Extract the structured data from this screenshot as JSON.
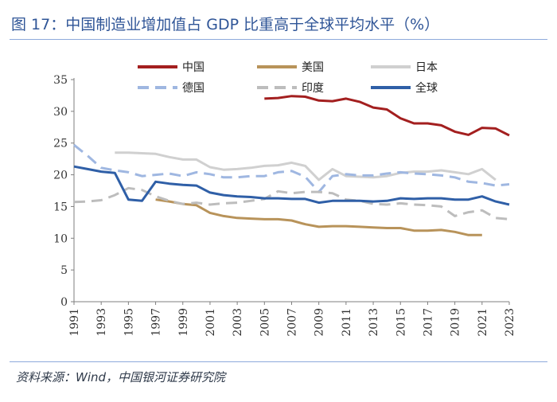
{
  "title": "图 17：中国制造业增加值占 GDP 比重高于全球平均水平（%）",
  "source": "资料来源：Wind，中国银河证券研究院",
  "chart_data": {
    "type": "line",
    "x": [
      1991,
      1992,
      1993,
      1994,
      1995,
      1996,
      1997,
      1998,
      1999,
      2000,
      2001,
      2002,
      2003,
      2004,
      2005,
      2006,
      2007,
      2008,
      2009,
      2010,
      2011,
      2012,
      2013,
      2014,
      2015,
      2016,
      2017,
      2018,
      2019,
      2020,
      2021,
      2022,
      2023
    ],
    "x_tick_labels": [
      "1991",
      "1993",
      "1995",
      "1997",
      "1999",
      "2001",
      "2003",
      "2005",
      "2007",
      "2009",
      "2011",
      "2013",
      "2015",
      "2017",
      "2019",
      "2021",
      "2023"
    ],
    "y_ticks": [
      "0",
      "5",
      "10",
      "15",
      "20",
      "25",
      "30",
      "35"
    ],
    "ylim": [
      0,
      35
    ],
    "grid": false,
    "legend_position": "top",
    "series": [
      {
        "name": "中国",
        "color": "#a31f1f",
        "dash": "solid",
        "values": [
          null,
          null,
          null,
          null,
          null,
          null,
          null,
          null,
          null,
          null,
          null,
          null,
          null,
          null,
          32.0,
          32.1,
          32.4,
          32.3,
          31.7,
          31.6,
          32.0,
          31.5,
          30.6,
          30.3,
          28.9,
          28.1,
          28.1,
          27.8,
          26.8,
          26.3,
          27.4,
          27.3,
          26.2
        ]
      },
      {
        "name": "美国",
        "color": "#b8935a",
        "dash": "solid",
        "values": [
          null,
          null,
          null,
          null,
          null,
          null,
          16.1,
          15.8,
          15.4,
          15.2,
          14.0,
          13.5,
          13.2,
          13.1,
          13.0,
          13.0,
          12.8,
          12.2,
          11.8,
          11.9,
          11.9,
          11.8,
          11.7,
          11.6,
          11.6,
          11.2,
          11.2,
          11.3,
          11.0,
          10.5,
          10.5,
          null,
          null
        ]
      },
      {
        "name": "日本",
        "color": "#d0d0d0",
        "dash": "solid",
        "values": [
          null,
          null,
          null,
          23.5,
          23.5,
          23.4,
          23.3,
          22.8,
          22.4,
          22.4,
          21.2,
          20.8,
          20.9,
          21.1,
          21.4,
          21.5,
          21.9,
          21.4,
          19.2,
          20.9,
          19.8,
          19.7,
          19.6,
          19.8,
          20.3,
          20.5,
          20.5,
          20.7,
          20.4,
          20.1,
          20.9,
          19.2,
          null
        ]
      },
      {
        "name": "德国",
        "color": "#9fb7e1",
        "dash": "dashed",
        "values": [
          24.7,
          23.0,
          21.1,
          20.7,
          20.4,
          19.8,
          20.0,
          20.2,
          19.8,
          20.4,
          20.1,
          19.6,
          19.6,
          19.8,
          19.8,
          20.4,
          20.6,
          19.7,
          17.3,
          19.8,
          20.1,
          19.9,
          19.9,
          20.2,
          20.4,
          20.2,
          20.1,
          19.9,
          19.6,
          18.9,
          18.7,
          18.3,
          18.5
        ]
      },
      {
        "name": "印度",
        "color": "#bdbdbd",
        "dash": "dashed",
        "values": [
          15.7,
          15.8,
          16.0,
          16.8,
          17.9,
          17.6,
          16.6,
          15.9,
          15.4,
          15.6,
          15.3,
          15.5,
          15.6,
          15.9,
          16.2,
          17.4,
          17.1,
          17.3,
          17.3,
          17.1,
          16.1,
          15.9,
          15.4,
          15.3,
          15.5,
          15.3,
          15.2,
          15.0,
          13.5,
          14.1,
          14.4,
          13.2,
          13.0
        ]
      },
      {
        "name": "全球",
        "color": "#2f5fa7",
        "dash": "solid",
        "values": [
          21.3,
          20.9,
          20.5,
          20.3,
          16.1,
          15.9,
          18.9,
          18.6,
          18.4,
          18.3,
          17.2,
          16.8,
          16.6,
          16.5,
          16.3,
          16.3,
          16.2,
          16.2,
          15.6,
          15.9,
          15.9,
          15.9,
          15.8,
          15.9,
          16.3,
          16.2,
          16.3,
          16.3,
          16.1,
          16.1,
          16.6,
          15.8,
          15.3
        ]
      }
    ]
  }
}
